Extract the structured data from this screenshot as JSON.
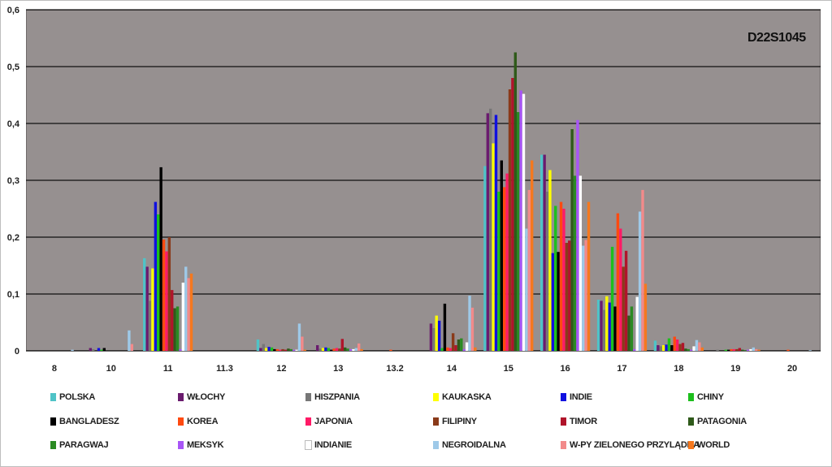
{
  "chart_data": {
    "type": "bar",
    "title": "D22S1045",
    "xlabel": "",
    "ylabel": "",
    "ylim": [
      0,
      0.6
    ],
    "yticks": [
      "0",
      "0,1",
      "0,2",
      "0,3",
      "0,4",
      "0,5",
      "0,6"
    ],
    "grid": true,
    "legend_position": "bottom",
    "categories": [
      "8",
      "10",
      "11",
      "11.3",
      "12",
      "13",
      "13.2",
      "14",
      "15",
      "16",
      "17",
      "18",
      "19",
      "20"
    ],
    "series": [
      {
        "name": "POLSKA",
        "color": "#4fc3c7",
        "values": [
          0,
          0,
          0.163,
          0,
          0.02,
          0,
          0,
          0,
          0.325,
          0.345,
          0.09,
          0.018,
          0,
          0
        ]
      },
      {
        "name": "WŁOCHY",
        "color": "#6a1b6e",
        "values": [
          0,
          0.005,
          0.148,
          0,
          0.005,
          0.01,
          0,
          0.048,
          0.418,
          0.345,
          0.088,
          0.01,
          0,
          0
        ]
      },
      {
        "name": "HISZPANIA",
        "color": "#777777",
        "values": [
          0,
          0.003,
          0.088,
          0,
          0.012,
          0.004,
          0,
          0.04,
          0.426,
          0.28,
          0.072,
          0.008,
          0.002,
          0
        ]
      },
      {
        "name": "KAUKASKA",
        "color": "#ffff00",
        "values": [
          0,
          0,
          0.145,
          0,
          0.005,
          0.005,
          0,
          0.062,
          0.365,
          0.318,
          0.096,
          0.01,
          0,
          0
        ]
      },
      {
        "name": "INDIE",
        "color": "#1010e0",
        "values": [
          0,
          0.005,
          0.262,
          0,
          0.007,
          0.006,
          0,
          0.053,
          0.415,
          0.172,
          0.085,
          0.011,
          0,
          0
        ]
      },
      {
        "name": "CHINY",
        "color": "#1dbf1d",
        "values": [
          0,
          0.002,
          0.24,
          0,
          0.006,
          0.005,
          0,
          0.005,
          0.28,
          0.255,
          0.183,
          0.022,
          0.002,
          0
        ]
      },
      {
        "name": "BANGLADESZ",
        "color": "#000000",
        "values": [
          0,
          0.005,
          0.323,
          0,
          0.003,
          0.002,
          0,
          0.083,
          0.335,
          0.174,
          0.078,
          0.01,
          0.002,
          0
        ]
      },
      {
        "name": "KOREA",
        "color": "#ff4a10",
        "values": [
          0,
          0,
          0.196,
          0,
          0.003,
          0.004,
          0.002,
          0.006,
          0.288,
          0.262,
          0.242,
          0.025,
          0.003,
          0.002
        ]
      },
      {
        "name": "JAPONIA",
        "color": "#ff1a66",
        "values": [
          0,
          0,
          0.175,
          0,
          0.002,
          0.005,
          0,
          0.005,
          0.312,
          0.25,
          0.215,
          0.02,
          0.003,
          0
        ]
      },
      {
        "name": "FILIPINY",
        "color": "#8a3a1a",
        "values": [
          0,
          0,
          0.2,
          0,
          0.003,
          0.004,
          0,
          0.031,
          0.46,
          0.19,
          0.148,
          0.012,
          0.003,
          0
        ]
      },
      {
        "name": "TIMOR",
        "color": "#b0142a",
        "values": [
          0,
          0,
          0.107,
          0,
          0.002,
          0.021,
          0,
          0.01,
          0.48,
          0.194,
          0.176,
          0.014,
          0.005,
          0
        ]
      },
      {
        "name": "PATAGONIA",
        "color": "#2f5a1a",
        "values": [
          0,
          0,
          0.075,
          0,
          0.004,
          0.006,
          0,
          0.02,
          0.525,
          0.39,
          0.062,
          0.004,
          0.002,
          0
        ]
      },
      {
        "name": "PARAGWAJ",
        "color": "#2a8a22",
        "values": [
          0,
          0,
          0.078,
          0,
          0.003,
          0.004,
          0,
          0.022,
          0.42,
          0.308,
          0.078,
          0.003,
          0.001,
          0
        ]
      },
      {
        "name": "MEKSYK",
        "color": "#a855f7",
        "values": [
          0,
          0,
          0.003,
          0,
          0.002,
          0.003,
          0,
          0.003,
          0.458,
          0.406,
          0.003,
          0.002,
          0.002,
          0
        ]
      },
      {
        "name": "INDIANIE",
        "color": "#ffffff",
        "values": [
          0,
          0,
          0.12,
          0,
          0.002,
          0.003,
          0,
          0.015,
          0.452,
          0.308,
          0.095,
          0.008,
          0.003,
          0
        ]
      },
      {
        "name": "NEGROIDALNA",
        "color": "#9ec9e8",
        "values": [
          0.002,
          0.036,
          0.148,
          0,
          0.048,
          0.005,
          0,
          0.097,
          0.215,
          0.185,
          0.245,
          0.019,
          0.006,
          0.001
        ]
      },
      {
        "name": "W-PY ZIELONEGO PRZYLĄDKA",
        "color": "#f28a8a",
        "values": [
          0,
          0.012,
          0.128,
          0,
          0.025,
          0.013,
          0,
          0.076,
          0.283,
          0.195,
          0.283,
          0.015,
          0.003,
          0
        ]
      },
      {
        "name": "WORLD",
        "color": "#f5781e",
        "values": [
          0,
          0,
          0.136,
          0,
          0.002,
          0.003,
          0,
          0.006,
          0.335,
          0.262,
          0.118,
          0.006,
          0.002,
          0
        ]
      }
    ]
  }
}
